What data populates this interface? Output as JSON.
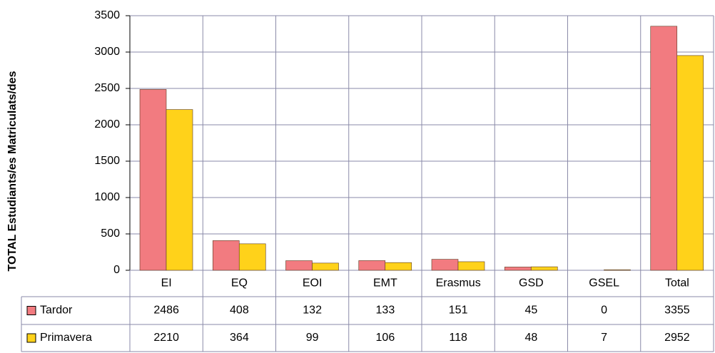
{
  "chart_data": {
    "type": "bar",
    "y_label": "TOTAL Estudiants/es Matriculats/des",
    "categories": [
      "EI",
      "EQ",
      "EOI",
      "EMT",
      "Erasmus",
      "GSD",
      "GSEL",
      "Total"
    ],
    "series": [
      {
        "name": "Tardor",
        "color": "#f27b80",
        "values": [
          2486,
          408,
          132,
          133,
          151,
          45,
          0,
          3355
        ]
      },
      {
        "name": "Primavera",
        "color": "#ffd21a",
        "values": [
          2210,
          364,
          99,
          106,
          118,
          48,
          7,
          2952
        ]
      }
    ],
    "ylim": [
      0,
      3500
    ],
    "yticks": [
      0,
      500,
      1000,
      1500,
      2000,
      2500,
      3000,
      3500
    ],
    "grid": true,
    "data_table": true
  }
}
